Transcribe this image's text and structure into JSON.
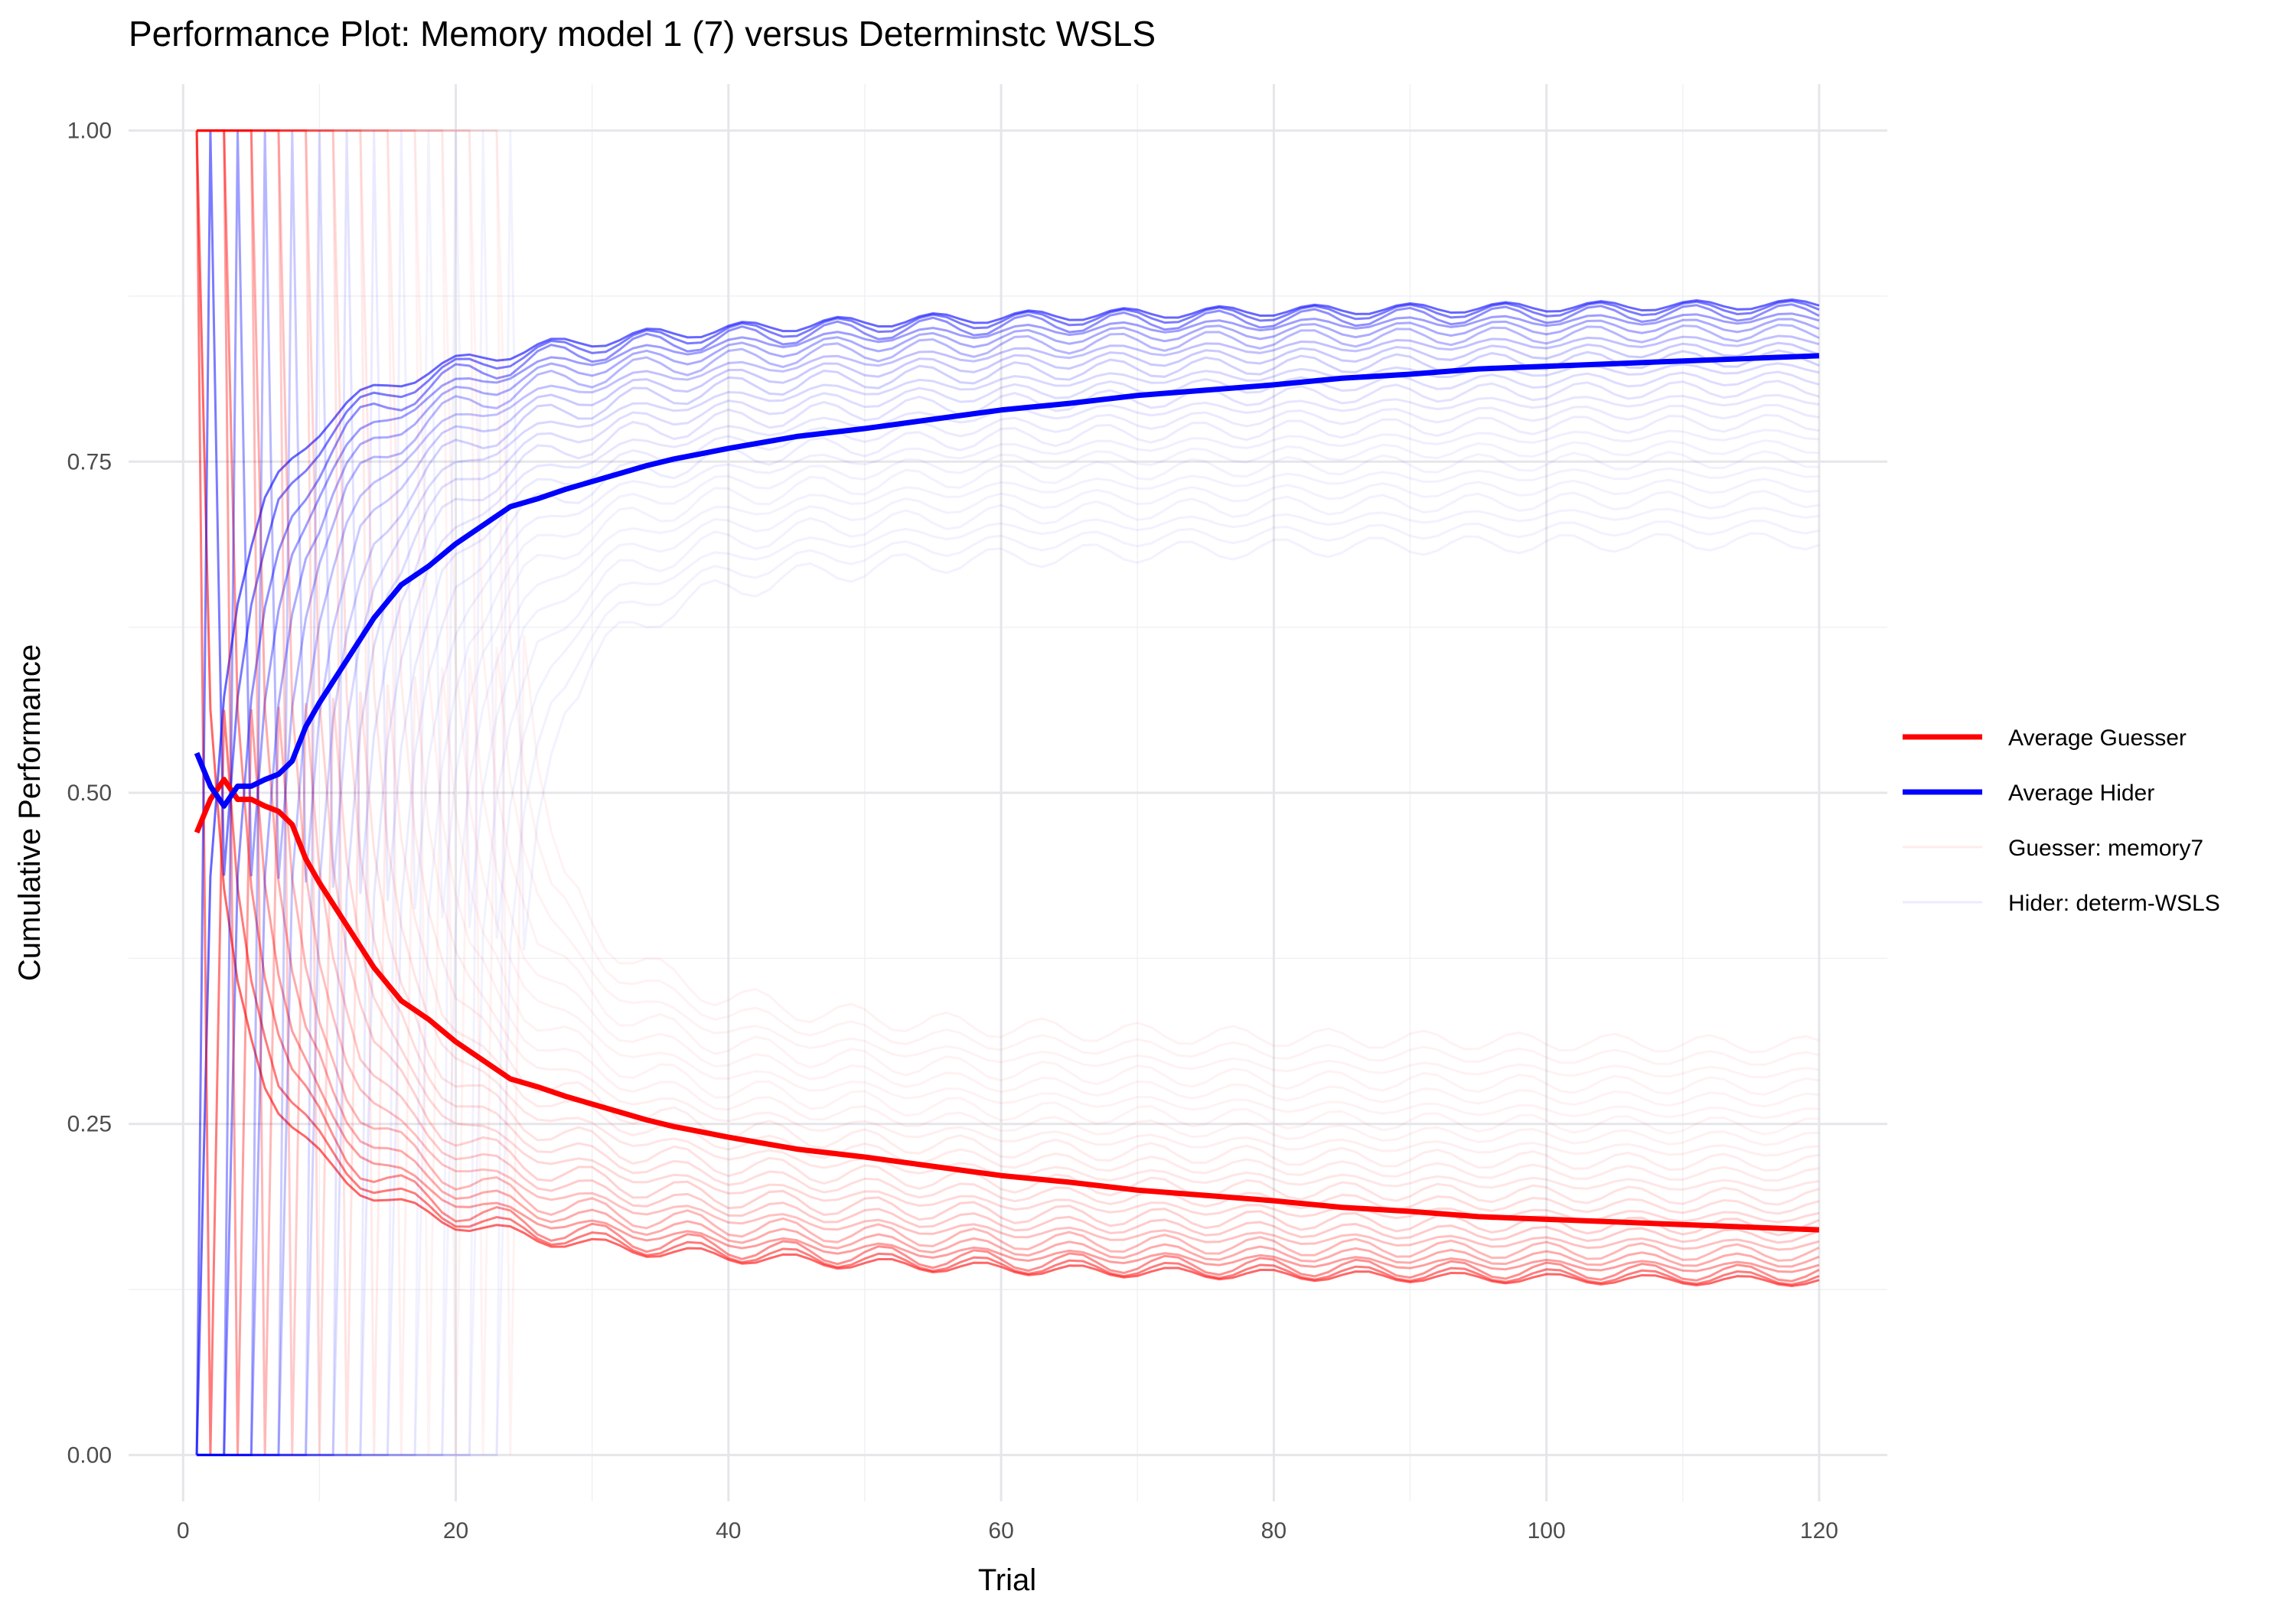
{
  "chart_data": {
    "type": "line",
    "title": "Performance Plot: Memory model 1 (7) versus Determinstc WSLS",
    "xlabel": "Trial",
    "ylabel": "Cumulative Performance",
    "xlim": [
      -4,
      125
    ],
    "ylim": [
      -0.035,
      1.035
    ],
    "x_ticks": [
      0,
      20,
      40,
      60,
      80,
      100,
      120
    ],
    "x_tick_labels": [
      "0",
      "20",
      "40",
      "60",
      "80",
      "100",
      "120"
    ],
    "y_ticks": [
      0,
      0.25,
      0.5,
      0.75,
      1
    ],
    "y_tick_labels": [
      "0.00",
      "0.25",
      "0.50",
      "0.75",
      "1.00"
    ],
    "grid": true,
    "legend_position": "right",
    "legend": [
      {
        "label": "Average Guesser",
        "color": "#ff0000",
        "style": "bold"
      },
      {
        "label": "Average Hider",
        "color": "#0000ff",
        "style": "bold"
      },
      {
        "label": "Guesser: memory7",
        "color": "#ff0000",
        "style": "faint"
      },
      {
        "label": "Hider: determ-WSLS",
        "color": "#0000ff",
        "style": "faint"
      }
    ],
    "series": [
      {
        "name": "Average Guesser",
        "color": "#ff0000",
        "points": [
          [
            1,
            0.47
          ],
          [
            2,
            0.495
          ],
          [
            3,
            0.51
          ],
          [
            4,
            0.495
          ],
          [
            5,
            0.495
          ],
          [
            6,
            0.49
          ],
          [
            7,
            0.486
          ],
          [
            8,
            0.476
          ],
          [
            9,
            0.45
          ],
          [
            10,
            0.432
          ],
          [
            12,
            0.4
          ],
          [
            14,
            0.368
          ],
          [
            16,
            0.343
          ],
          [
            18,
            0.329
          ],
          [
            20,
            0.312
          ],
          [
            22,
            0.298
          ],
          [
            24,
            0.284
          ],
          [
            26,
            0.278
          ],
          [
            28,
            0.271
          ],
          [
            30,
            0.265
          ],
          [
            32,
            0.259
          ],
          [
            34,
            0.253
          ],
          [
            36,
            0.248
          ],
          [
            38,
            0.244
          ],
          [
            40,
            0.24
          ],
          [
            45,
            0.231
          ],
          [
            50,
            0.225
          ],
          [
            55,
            0.218
          ],
          [
            60,
            0.211
          ],
          [
            65,
            0.206
          ],
          [
            70,
            0.2
          ],
          [
            75,
            0.196
          ],
          [
            80,
            0.192
          ],
          [
            85,
            0.187
          ],
          [
            90,
            0.184
          ],
          [
            95,
            0.18
          ],
          [
            100,
            0.178
          ],
          [
            105,
            0.176
          ],
          [
            110,
            0.174
          ],
          [
            115,
            0.172
          ],
          [
            120,
            0.17
          ]
        ]
      },
      {
        "name": "Average Hider",
        "color": "#0000ff",
        "points": [
          [
            1,
            0.53
          ],
          [
            2,
            0.505
          ],
          [
            3,
            0.49
          ],
          [
            4,
            0.505
          ],
          [
            5,
            0.505
          ],
          [
            6,
            0.51
          ],
          [
            7,
            0.514
          ],
          [
            8,
            0.524
          ],
          [
            9,
            0.55
          ],
          [
            10,
            0.568
          ],
          [
            12,
            0.6
          ],
          [
            14,
            0.632
          ],
          [
            16,
            0.657
          ],
          [
            18,
            0.671
          ],
          [
            20,
            0.688
          ],
          [
            22,
            0.702
          ],
          [
            24,
            0.716
          ],
          [
            26,
            0.722
          ],
          [
            28,
            0.729
          ],
          [
            30,
            0.735
          ],
          [
            32,
            0.741
          ],
          [
            34,
            0.747
          ],
          [
            36,
            0.752
          ],
          [
            38,
            0.756
          ],
          [
            40,
            0.76
          ],
          [
            45,
            0.769
          ],
          [
            50,
            0.775
          ],
          [
            55,
            0.782
          ],
          [
            60,
            0.789
          ],
          [
            65,
            0.794
          ],
          [
            70,
            0.8
          ],
          [
            75,
            0.804
          ],
          [
            80,
            0.808
          ],
          [
            85,
            0.813
          ],
          [
            90,
            0.816
          ],
          [
            95,
            0.82
          ],
          [
            100,
            0.822
          ],
          [
            105,
            0.824
          ],
          [
            110,
            0.826
          ],
          [
            115,
            0.828
          ],
          [
            120,
            0.83
          ]
        ]
      }
    ]
  }
}
